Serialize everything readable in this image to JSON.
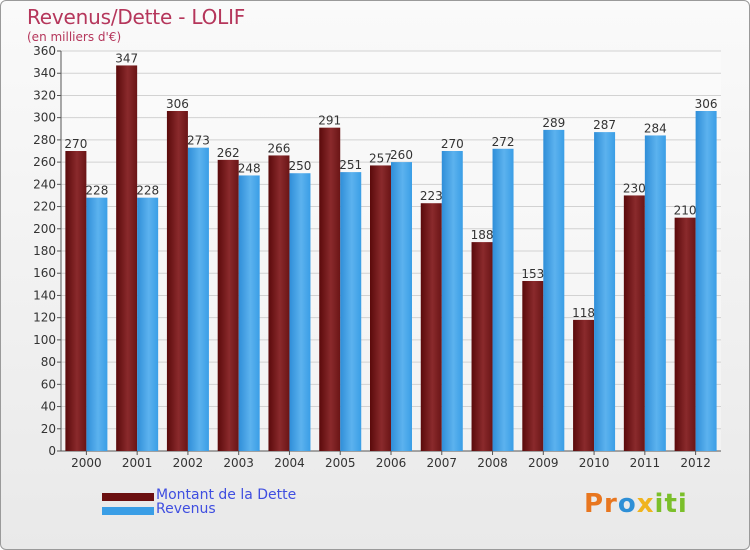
{
  "title": "Revenus/Dette - LOLIF",
  "subtitle": "(en milliers d'€)",
  "logo_text": "Proxiti",
  "colors": {
    "dette": "#7a1c1c",
    "revenus": "#3a9ee6",
    "title": "#b5365b",
    "legend_text": "#3f4ee0"
  },
  "legend": [
    {
      "label": "Montant de la Dette",
      "color": "#6b0f10"
    },
    {
      "label": "Revenus",
      "color": "#3a9ee6"
    }
  ],
  "chart_data": {
    "type": "bar",
    "categories": [
      "2000",
      "2001",
      "2002",
      "2003",
      "2004",
      "2005",
      "2006",
      "2007",
      "2008",
      "2009",
      "2010",
      "2011",
      "2012"
    ],
    "series": [
      {
        "name": "Montant de la Dette",
        "values": [
          270,
          347,
          306,
          262,
          266,
          291,
          257,
          223,
          188,
          153,
          118,
          230,
          210
        ]
      },
      {
        "name": "Revenus",
        "values": [
          228,
          228,
          273,
          248,
          250,
          251,
          260,
          270,
          272,
          289,
          287,
          284,
          306
        ]
      }
    ],
    "ylim": [
      0,
      360
    ],
    "yticks": [
      0,
      20,
      40,
      60,
      80,
      100,
      120,
      140,
      160,
      180,
      200,
      220,
      240,
      260,
      280,
      300,
      320,
      340,
      360
    ],
    "grid": true,
    "legend_position": "bottom-left"
  }
}
